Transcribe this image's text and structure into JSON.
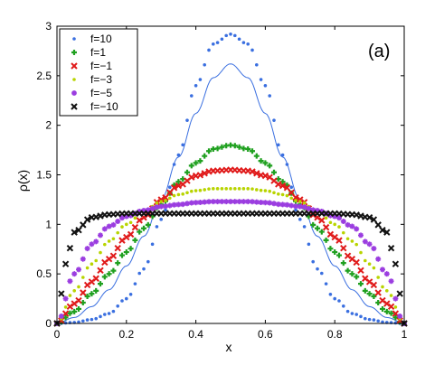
{
  "chart_data": {
    "type": "scatter",
    "xlabel": "x",
    "ylabel": "ρ(x)",
    "panel_label": "(a)",
    "xlim": [
      0,
      1
    ],
    "ylim": [
      0,
      3
    ],
    "xticks": [
      0,
      0.2,
      0.4,
      0.6,
      0.8,
      1
    ],
    "xtick_labels": [
      "0",
      "0.2",
      "0.4",
      "0.6",
      "0.8",
      "1"
    ],
    "yticks": [
      0,
      0.5,
      1,
      1.5,
      2,
      2.5,
      3
    ],
    "ytick_labels": [
      "0",
      "0.5",
      "1",
      "1.5",
      "2",
      "2.5",
      "3"
    ],
    "legend_position": "top-left",
    "grid": false,
    "series": [
      {
        "name": "f=10",
        "marker": "dot",
        "color": "#3a6fe0",
        "x": [
          0,
          0.05,
          0.1,
          0.15,
          0.2,
          0.25,
          0.3,
          0.35,
          0.4,
          0.45,
          0.5,
          0.55,
          0.6,
          0.65,
          0.7,
          0.75,
          0.8,
          0.85,
          0.9,
          0.95,
          1
        ],
        "y": [
          0,
          0.01,
          0.04,
          0.1,
          0.25,
          0.55,
          1.05,
          1.7,
          2.4,
          2.82,
          2.92,
          2.82,
          2.4,
          1.7,
          1.05,
          0.55,
          0.25,
          0.1,
          0.04,
          0.01,
          0
        ]
      },
      {
        "name": "f=1",
        "marker": "plus",
        "color": "#1fa01f",
        "x": [
          0,
          0.05,
          0.1,
          0.15,
          0.2,
          0.25,
          0.3,
          0.35,
          0.4,
          0.45,
          0.5,
          0.55,
          0.6,
          0.65,
          0.7,
          0.75,
          0.8,
          0.85,
          0.9,
          0.95,
          1
        ],
        "y": [
          0,
          0.12,
          0.3,
          0.5,
          0.72,
          0.96,
          1.2,
          1.43,
          1.62,
          1.76,
          1.8,
          1.76,
          1.62,
          1.43,
          1.2,
          0.96,
          0.72,
          0.5,
          0.3,
          0.12,
          0
        ]
      },
      {
        "name": "f=−1",
        "marker": "x",
        "color": "#e01a1a",
        "x": [
          0,
          0.05,
          0.1,
          0.15,
          0.2,
          0.25,
          0.3,
          0.35,
          0.4,
          0.45,
          0.5,
          0.55,
          0.6,
          0.65,
          0.7,
          0.75,
          0.8,
          0.85,
          0.9,
          0.95,
          1
        ],
        "y": [
          0,
          0.2,
          0.42,
          0.65,
          0.87,
          1.07,
          1.25,
          1.39,
          1.49,
          1.54,
          1.55,
          1.54,
          1.49,
          1.39,
          1.25,
          1.07,
          0.87,
          0.65,
          0.42,
          0.2,
          0
        ]
      },
      {
        "name": "f=−3",
        "marker": "dot",
        "color": "#b8d400",
        "x": [
          0,
          0.05,
          0.1,
          0.15,
          0.2,
          0.25,
          0.3,
          0.35,
          0.4,
          0.45,
          0.5,
          0.55,
          0.6,
          0.65,
          0.7,
          0.75,
          0.8,
          0.85,
          0.9,
          0.95,
          1
        ],
        "y": [
          0,
          0.33,
          0.6,
          0.83,
          1.0,
          1.13,
          1.23,
          1.3,
          1.34,
          1.36,
          1.36,
          1.36,
          1.34,
          1.3,
          1.23,
          1.13,
          1.0,
          0.83,
          0.6,
          0.33,
          0
        ]
      },
      {
        "name": "f=−5",
        "marker": "star",
        "color": "#9b3de0",
        "x": [
          0,
          0.05,
          0.1,
          0.15,
          0.2,
          0.25,
          0.3,
          0.35,
          0.4,
          0.45,
          0.5,
          0.55,
          0.6,
          0.65,
          0.7,
          0.75,
          0.8,
          0.85,
          0.9,
          0.95,
          1
        ],
        "y": [
          0,
          0.5,
          0.8,
          0.98,
          1.08,
          1.14,
          1.18,
          1.2,
          1.22,
          1.23,
          1.23,
          1.23,
          1.22,
          1.2,
          1.18,
          1.14,
          1.08,
          0.98,
          0.8,
          0.5,
          0
        ]
      },
      {
        "name": "f=−10",
        "marker": "x",
        "color": "#111111",
        "x": [
          0,
          0.025,
          0.05,
          0.1,
          0.15,
          0.2,
          0.25,
          0.3,
          0.35,
          0.4,
          0.45,
          0.5,
          0.55,
          0.6,
          0.65,
          0.7,
          0.75,
          0.8,
          0.85,
          0.9,
          0.95,
          0.975,
          1
        ],
        "y": [
          0,
          0.6,
          0.92,
          1.07,
          1.1,
          1.11,
          1.11,
          1.11,
          1.11,
          1.11,
          1.11,
          1.11,
          1.11,
          1.11,
          1.11,
          1.11,
          1.11,
          1.11,
          1.1,
          1.07,
          0.92,
          0.6,
          0
        ]
      }
    ],
    "curves": [
      {
        "style": "solid-line",
        "color": "#3a6fe0",
        "x": [
          0,
          0.05,
          0.1,
          0.15,
          0.2,
          0.25,
          0.3,
          0.35,
          0.4,
          0.45,
          0.5,
          0.55,
          0.6,
          0.65,
          0.7,
          0.75,
          0.8,
          0.85,
          0.9,
          0.95,
          1
        ],
        "y": [
          0,
          0.06,
          0.17,
          0.34,
          0.58,
          0.88,
          1.25,
          1.68,
          2.12,
          2.48,
          2.62,
          2.48,
          2.12,
          1.68,
          1.25,
          0.88,
          0.58,
          0.34,
          0.17,
          0.06,
          0
        ]
      }
    ]
  }
}
